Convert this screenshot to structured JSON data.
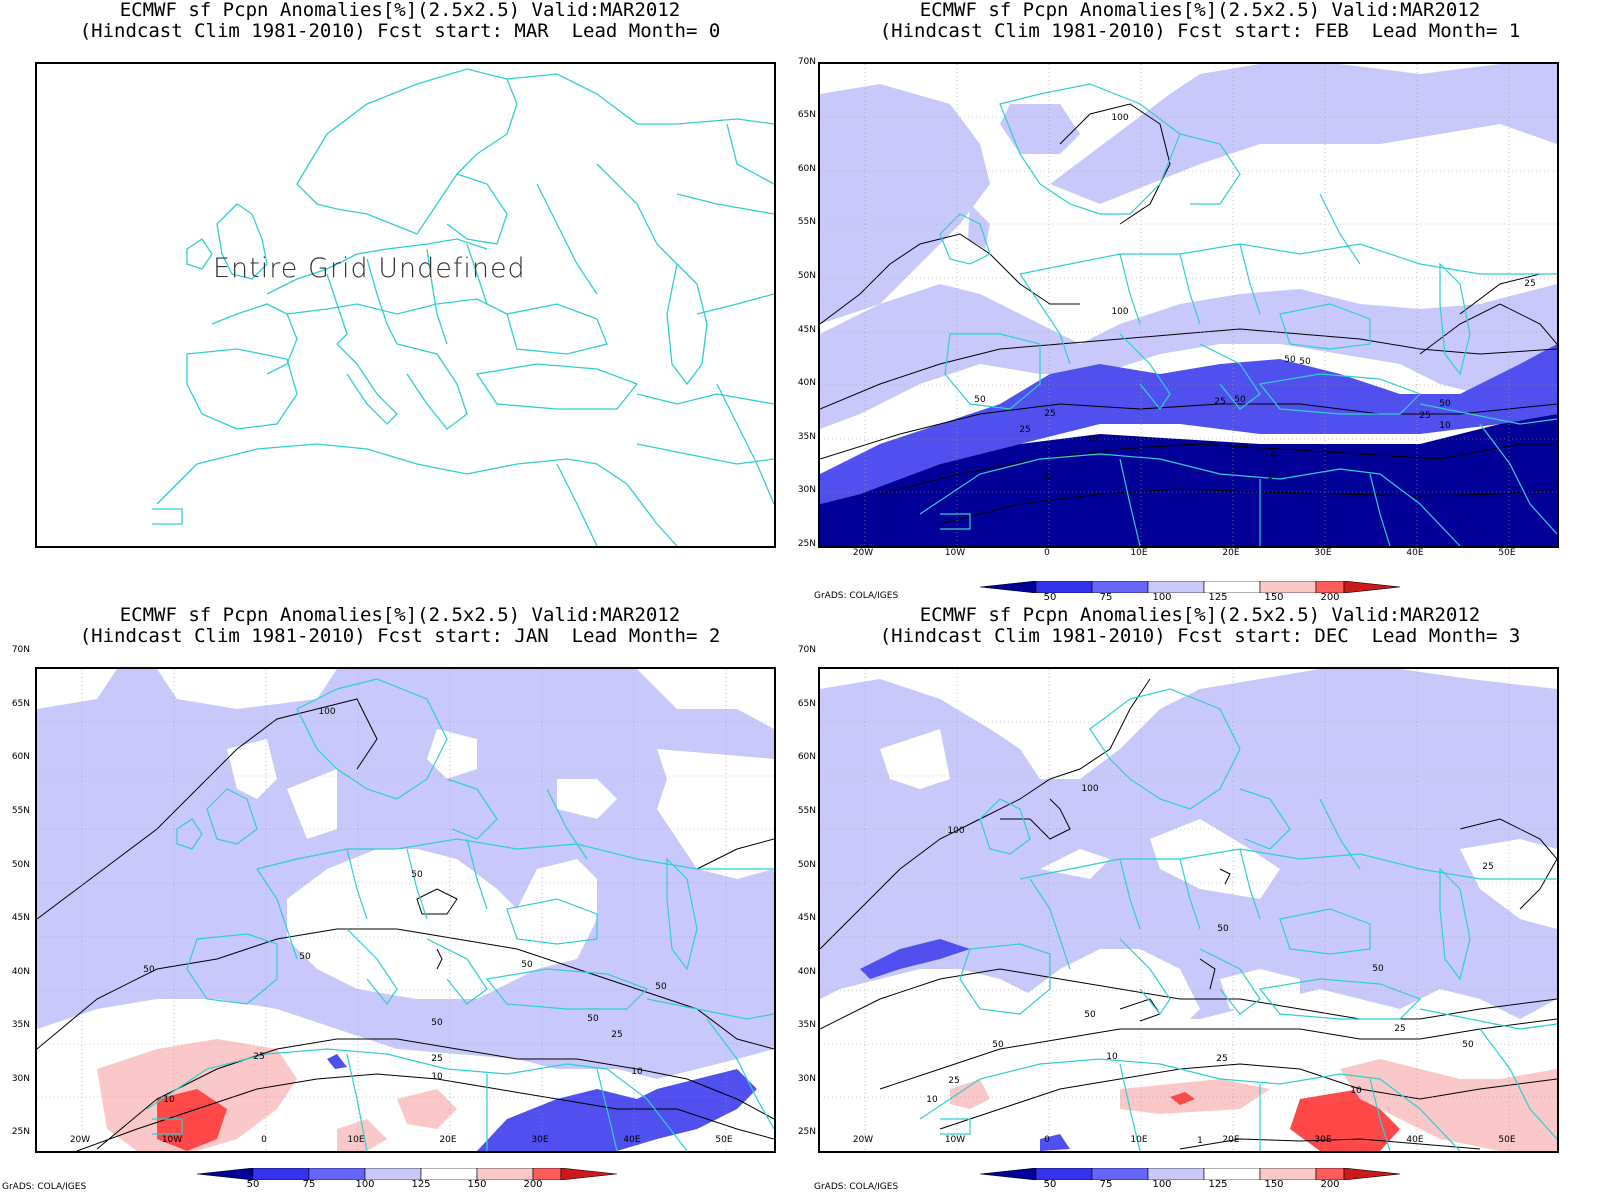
{
  "panels": [
    {
      "title_line1": "ECMWF sf Pcpn Anomalies[%](2.5x2.5) Valid:MAR2012",
      "title_line2": "(Hindcast Clim 1981-2010) Fcst start: MAR  Lead Month= 0",
      "message": "Entire Grid Undefined"
    },
    {
      "title_line1": "ECMWF sf Pcpn Anomalies[%](2.5x2.5) Valid:MAR2012",
      "title_line2": "(Hindcast Clim 1981-2010) Fcst start: FEB  Lead Month= 1"
    },
    {
      "title_line1": "ECMWF sf Pcpn Anomalies[%](2.5x2.5) Valid:MAR2012",
      "title_line2": "(Hindcast Clim 1981-2010) Fcst start: JAN  Lead Month= 2"
    },
    {
      "title_line1": "ECMWF sf Pcpn Anomalies[%](2.5x2.5) Valid:MAR2012",
      "title_line2": "(Hindcast Clim 1981-2010) Fcst start: DEC  Lead Month= 3"
    }
  ],
  "lat_labels": [
    "70N",
    "65N",
    "60N",
    "55N",
    "50N",
    "45N",
    "40N",
    "35N",
    "30N",
    "25N"
  ],
  "lon_labels": [
    "20W",
    "10W",
    "0",
    "10E",
    "20E",
    "30E",
    "40E",
    "50E"
  ],
  "colorbar": {
    "ticks": [
      "50",
      "75",
      "100",
      "125",
      "150",
      "200"
    ],
    "colors": [
      "#000099",
      "#3333ee",
      "#6666ff",
      "#c8c8fa",
      "#ffffff",
      "#fac8c8",
      "#ff5c5c",
      "#cc1a1a"
    ]
  },
  "credit": "GrADS: COLA/IGES",
  "contour_labels": {
    "p2": [
      "100",
      "100",
      "25",
      "50",
      "50",
      "25",
      "50",
      "25",
      "25",
      "50",
      "10",
      "10",
      "10",
      "1",
      "1",
      "50",
      "25"
    ],
    "p3": [
      "100",
      "50",
      "50",
      "50",
      "50",
      "50",
      "50",
      "25",
      "25",
      "10",
      "10",
      "10",
      "50",
      "25"
    ],
    "p4": [
      "100",
      "100",
      "50",
      "50",
      "50",
      "50",
      "25",
      "10",
      "10",
      "10",
      "25",
      "50",
      "25",
      "1",
      "25"
    ]
  },
  "colors": {
    "coast": "#2fcfcf",
    "blue_light": "#c8c8fa",
    "blue_mid": "#5050ee",
    "blue_dark": "#000099",
    "red_light": "#fac8c8",
    "red_mid": "#ff4848"
  }
}
